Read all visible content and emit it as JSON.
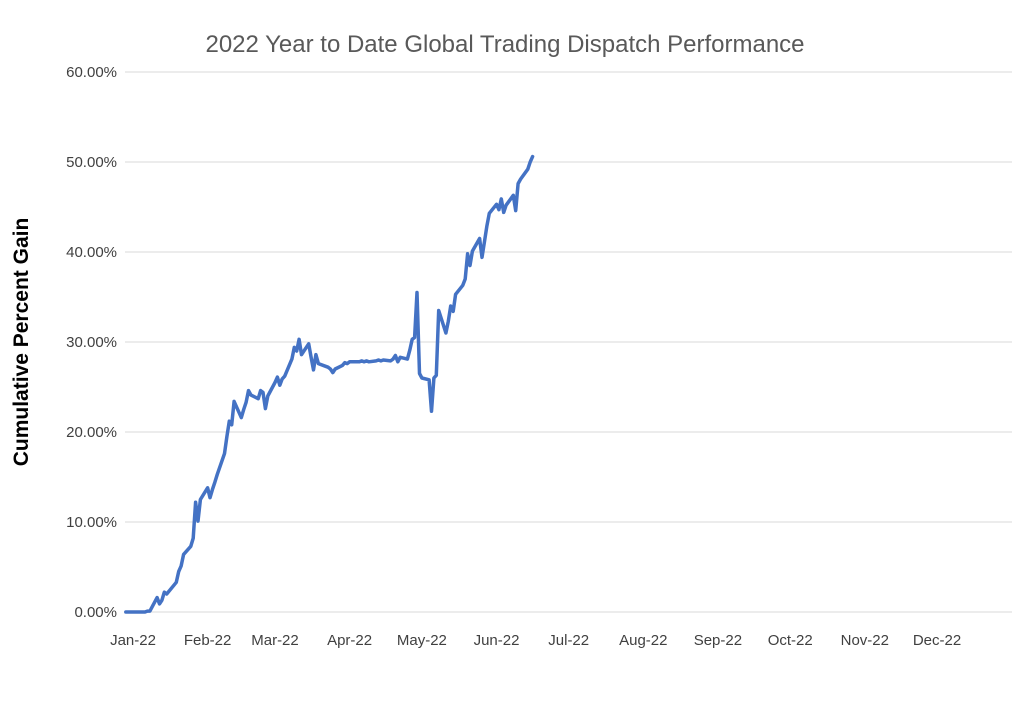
{
  "page": {
    "background": "#FFFFFF"
  },
  "chart_data": {
    "type": "line",
    "title": "2022 Year to Date Global Trading Dispatch Performance",
    "xlabel": "",
    "ylabel": "Cumulative Percent Gain",
    "ylim": [
      0,
      60
    ],
    "grid": true,
    "legend": "none",
    "y_tick_values": [
      0,
      10,
      20,
      30,
      40,
      50,
      60
    ],
    "y_tick_labels": [
      "0.00%",
      "10.00%",
      "20.00%",
      "30.00%",
      "40.00%",
      "50.00%",
      "60.00%"
    ],
    "x_tick_days": [
      0,
      31,
      59,
      90,
      120,
      151,
      181,
      212,
      243,
      273,
      304,
      334
    ],
    "x_tick_labels": [
      "Jan-22",
      "Feb-22",
      "Mar-22",
      "Apr-22",
      "May-22",
      "Jun-22",
      "Jul-22",
      "Aug-22",
      "Sep-22",
      "Oct-22",
      "Nov-22",
      "Dec-22"
    ],
    "colors": {
      "line": "#4472C4",
      "gridline": "#D9D9D9",
      "title_text": "#595959",
      "axis_text": "#404040",
      "ylabel_text": "#000000"
    },
    "series": [
      {
        "name": "Cumulative Percent Gain",
        "x_days": [
          -3,
          2,
          3,
          4,
          5,
          6,
          7,
          10,
          11,
          12,
          13,
          14,
          18,
          19,
          20,
          21,
          24,
          25,
          26,
          27,
          28,
          31,
          32,
          33,
          34,
          35,
          38,
          39,
          40,
          41,
          42,
          45,
          46,
          47,
          48,
          49,
          52,
          53,
          54,
          55,
          56,
          59,
          60,
          61,
          62,
          63,
          66,
          67,
          68,
          69,
          70,
          73,
          74,
          75,
          76,
          77,
          80,
          81,
          82,
          83,
          84,
          87,
          88,
          89,
          90,
          91,
          94,
          95,
          96,
          97,
          98,
          101,
          102,
          103,
          104,
          107,
          108,
          109,
          110,
          111,
          114,
          115,
          116,
          117,
          118,
          119,
          120,
          123,
          124,
          125,
          126,
          127,
          130,
          131,
          132,
          133,
          134,
          137,
          138,
          139,
          140,
          141,
          144,
          145,
          146,
          147,
          148,
          151,
          152,
          153,
          154,
          155,
          158,
          159,
          160,
          161,
          164,
          165,
          166
        ],
        "values": [
          0.0,
          0.0,
          0.0,
          0.0,
          0.0,
          0.1,
          0.1,
          1.6,
          0.9,
          1.3,
          2.2,
          2.0,
          3.3,
          4.5,
          5.1,
          6.4,
          7.3,
          8.2,
          12.2,
          10.1,
          12.5,
          13.8,
          12.7,
          13.6,
          14.4,
          15.3,
          17.6,
          19.5,
          21.2,
          20.8,
          23.4,
          21.6,
          22.5,
          23.3,
          24.6,
          24.1,
          23.7,
          24.6,
          24.4,
          22.6,
          24.0,
          25.5,
          26.1,
          25.2,
          25.9,
          26.2,
          28.1,
          29.4,
          29.0,
          30.3,
          28.6,
          29.8,
          28.3,
          26.9,
          28.6,
          27.6,
          27.3,
          27.2,
          27.0,
          26.6,
          27.0,
          27.4,
          27.7,
          27.6,
          27.8,
          27.8,
          27.8,
          27.9,
          27.8,
          27.9,
          27.8,
          27.9,
          28.0,
          27.9,
          28.0,
          27.9,
          28.1,
          28.5,
          27.8,
          28.3,
          28.1,
          29.1,
          30.3,
          30.5,
          35.5,
          26.5,
          26.0,
          25.8,
          22.3,
          26.0,
          26.3,
          33.5,
          31.0,
          32.3,
          34.0,
          33.4,
          35.3,
          36.3,
          37.0,
          39.8,
          38.5,
          40.1,
          41.5,
          39.4,
          41.1,
          42.9,
          44.3,
          45.3,
          44.7,
          45.9,
          44.4,
          45.2,
          46.3,
          44.6,
          47.6,
          48.1,
          49.2,
          50.0,
          50.6
        ]
      }
    ]
  }
}
